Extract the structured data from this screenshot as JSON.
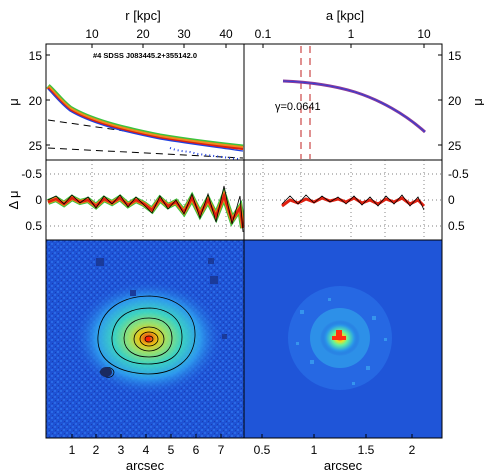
{
  "figure": {
    "object_label": "#4 SDSS J083445.2+355142.0",
    "gamma_label": "γ=0.0641",
    "top_axis_left_label": "r [kpc]",
    "top_axis_right_label": "a [kpc]",
    "ylabel_profile": "μ",
    "ylabel_residual": "Δ μ",
    "xlabel_bottom_left": "arcsec",
    "xlabel_bottom_right": "arcsec",
    "colors": {
      "data_orange": "#f08a1c",
      "data_red": "#e02010",
      "data_green": "#3cc43c",
      "model_blue": "#2040e0",
      "fit_purple": "#8a3a9a",
      "fit_red_dashed": "#c02020",
      "image_background": "#1f55d8"
    }
  },
  "chart_data": [
    {
      "panel": "surface-brightness-profile",
      "type": "line",
      "x_top_ticks": [
        "10",
        "20",
        "30",
        "40"
      ],
      "y_ticks": [
        "15",
        "20",
        "25"
      ],
      "xlim_arcsec": [
        0,
        8
      ],
      "ylim": [
        26.5,
        13.5
      ],
      "series": [
        {
          "x": [
            0.1,
            0.3,
            0.6,
            1.0,
            1.5,
            2.0,
            2.5,
            3.0,
            3.5,
            4.0,
            4.5,
            5.0,
            5.5,
            6.0,
            6.5,
            7.0,
            7.5,
            8.0
          ],
          "y": [
            18.6,
            19.6,
            20.6,
            21.4,
            22.0,
            22.4,
            22.75,
            23.0,
            23.2,
            23.35,
            23.5,
            23.65,
            23.8,
            23.9,
            24.0,
            24.1,
            24.2,
            24.3
          ]
        }
      ],
      "dashed_components": [
        {
          "x": [
            0.1,
            8.0
          ],
          "y": [
            22.6,
            26.7
          ]
        },
        {
          "x": [
            0.1,
            8.0
          ],
          "y": [
            19.8,
            24.8
          ]
        }
      ]
    },
    {
      "panel": "profile-vs-semi-major-axis",
      "type": "line",
      "x_top_ticks": [
        "0.1",
        "1",
        "10"
      ],
      "y_ticks": [
        "15",
        "20",
        "25"
      ],
      "xlim_kpc": [
        0.05,
        40
      ],
      "xscale": "log",
      "ylim": [
        26.5,
        13.5
      ],
      "series": [
        {
          "x": [
            0.3,
            0.5,
            1,
            2,
            5,
            10,
            20,
            30
          ],
          "y": [
            18.1,
            18.3,
            18.9,
            19.7,
            21.1,
            22.5,
            24.2,
            25.0
          ]
        }
      ],
      "dashed_vlines_kpc": [
        0.4,
        0.55
      ]
    },
    {
      "panel": "residuals",
      "type": "line",
      "y_ticks": [
        "-0.5",
        "0",
        "0.5"
      ],
      "ylim": [
        0.85,
        -0.75
      ]
    },
    {
      "panel": "images",
      "type": "heatmap",
      "x_ticks_left": [
        "1",
        "2",
        "3",
        "4",
        "5",
        "6",
        "7"
      ],
      "x_ticks_right": [
        "0.5",
        "1",
        "1.5",
        "2"
      ]
    }
  ]
}
